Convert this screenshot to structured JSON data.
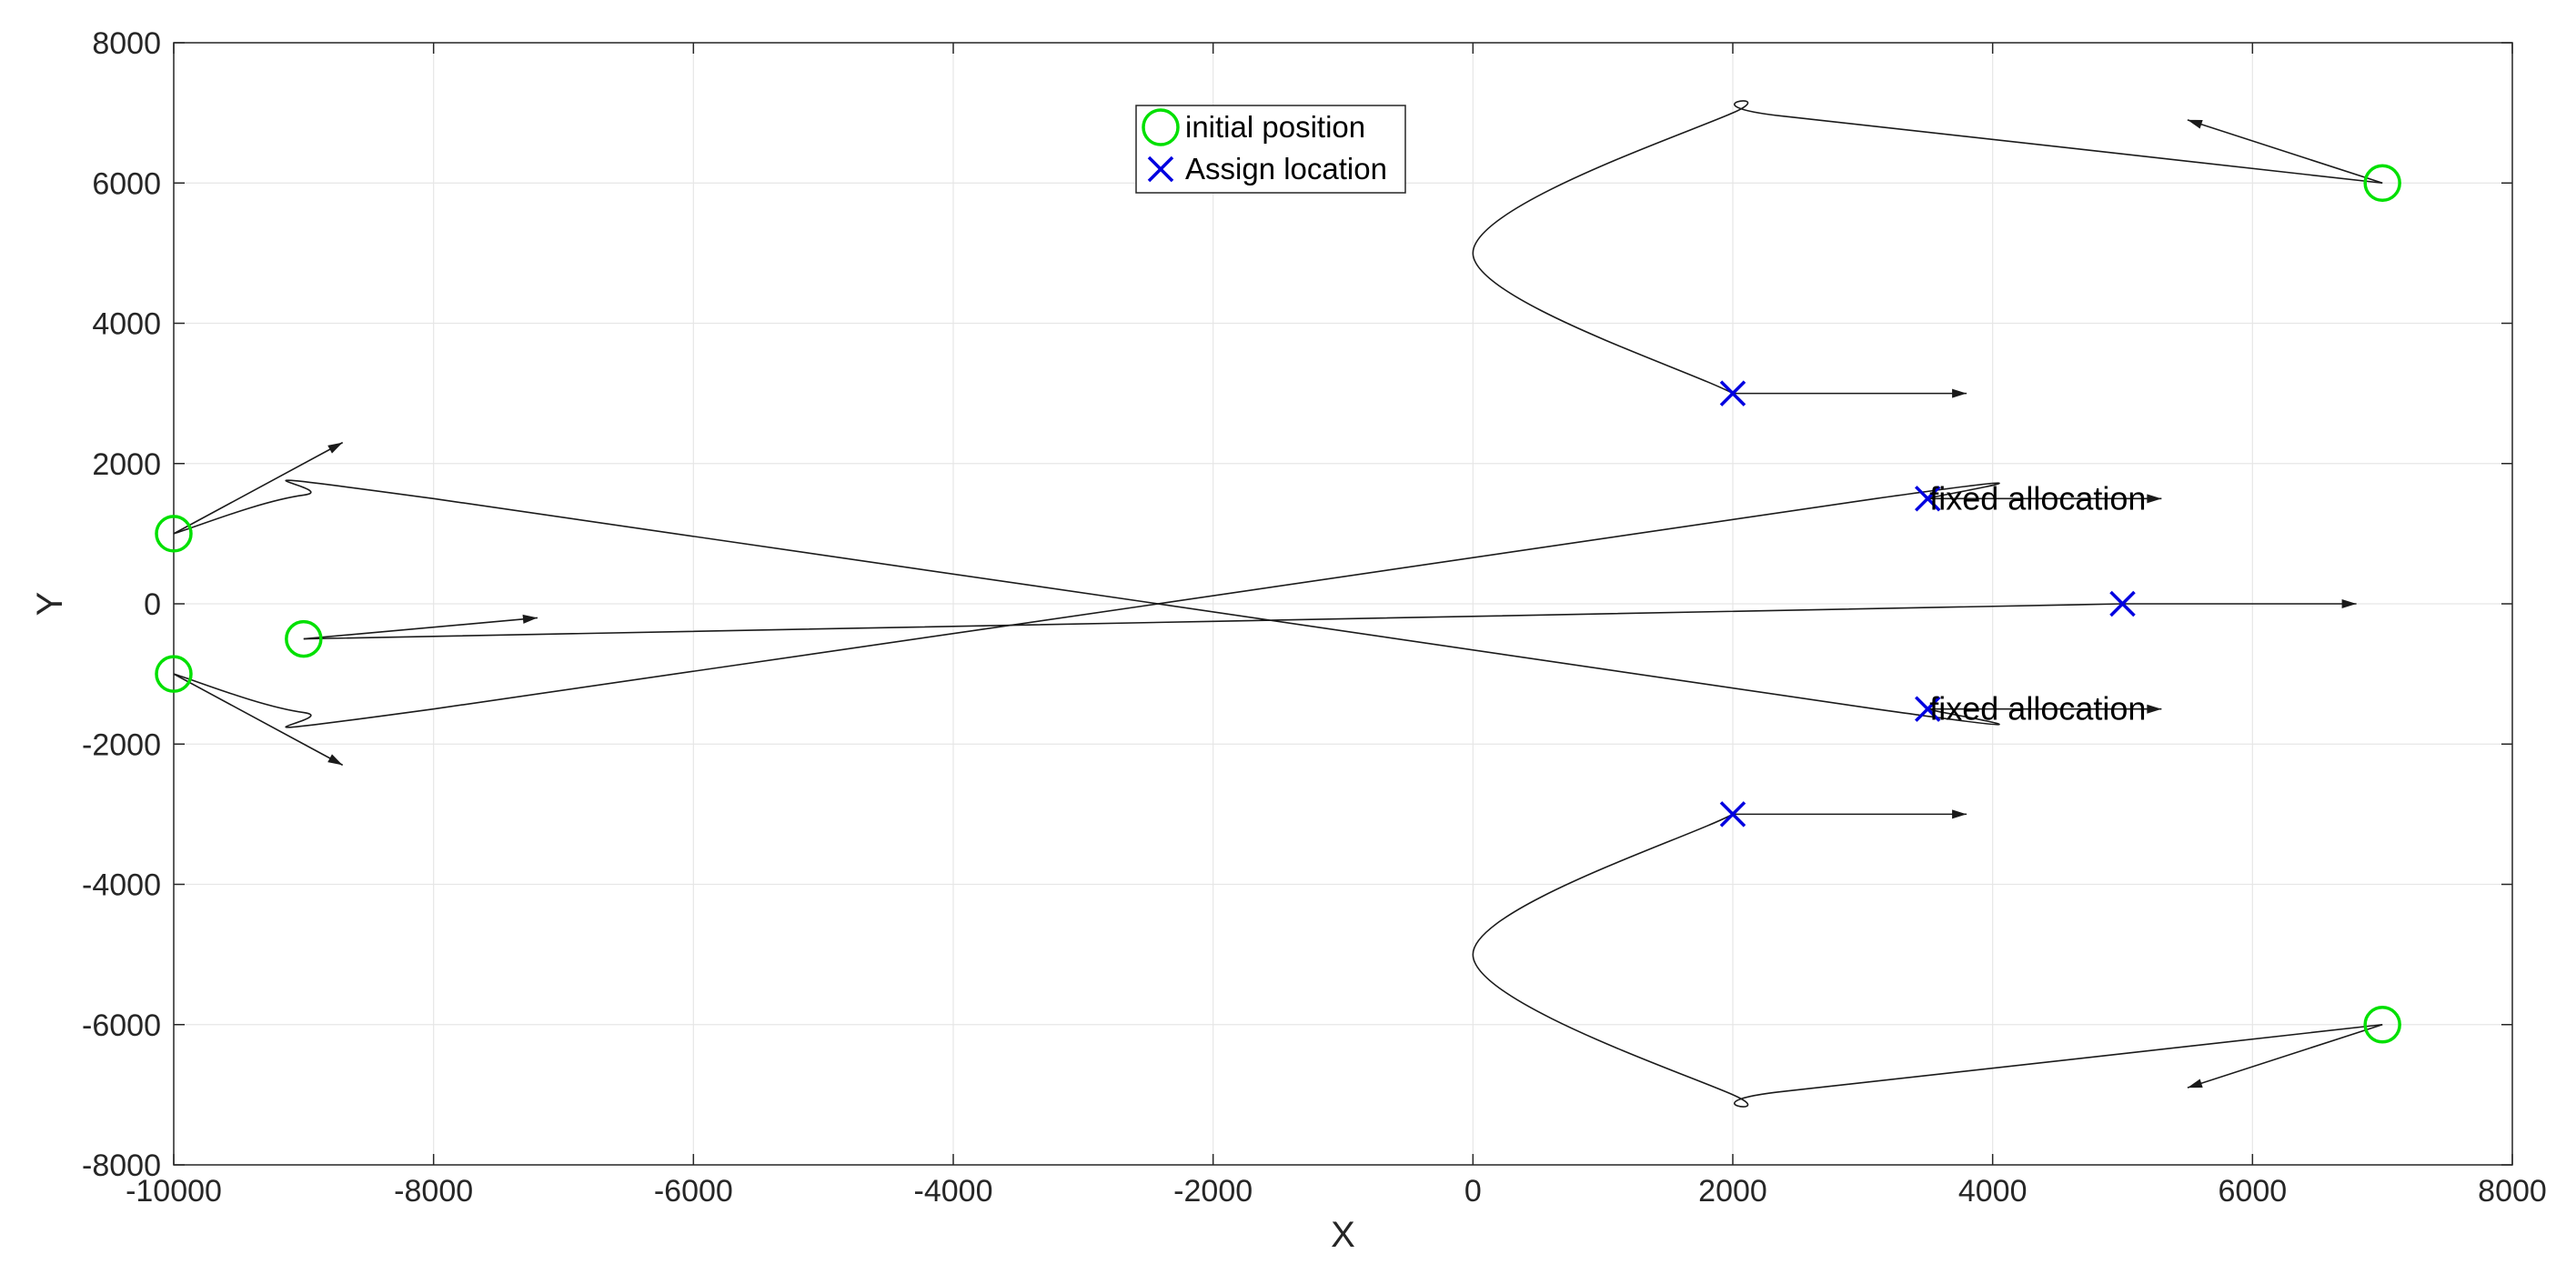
{
  "chart_data": {
    "type": "scatter",
    "title": "",
    "xlabel": "X",
    "ylabel": "Y",
    "xlim": [
      -10000,
      8000
    ],
    "ylim": [
      -8000,
      8000
    ],
    "xticks": [
      -10000,
      -8000,
      -6000,
      -4000,
      -2000,
      0,
      2000,
      4000,
      6000,
      8000
    ],
    "yticks": [
      -8000,
      -6000,
      -4000,
      -2000,
      0,
      2000,
      4000,
      6000,
      8000
    ],
    "xtick_labels": [
      "-10000",
      "-8000",
      "-6000",
      "-4000",
      "-2000",
      "0",
      "2000",
      "4000",
      "6000",
      "8000"
    ],
    "ytick_labels": [
      "-8000",
      "-6000",
      "-4000",
      "-2000",
      "0",
      "2000",
      "4000",
      "6000",
      "8000"
    ],
    "grid": true,
    "legend_position": "top-center",
    "series": [
      {
        "name": "initial position",
        "marker": "circle",
        "color": "#00e000",
        "points": [
          [
            -10000,
            1000
          ],
          [
            -10000,
            -1000
          ],
          [
            -9000,
            -500
          ],
          [
            7000,
            6000
          ],
          [
            7000,
            -6000
          ]
        ]
      },
      {
        "name": "Assign location",
        "marker": "x",
        "color": "#0000e0",
        "points": [
          [
            2000,
            3000
          ],
          [
            3500,
            1500
          ],
          [
            5000,
            0
          ],
          [
            3500,
            -1500
          ],
          [
            2000,
            -3000
          ]
        ]
      }
    ],
    "paths": [
      [
        [
          -10000,
          1000
        ],
        [
          -9000,
          1550
        ],
        [
          -8000,
          1500
        ],
        [
          3100,
          -1500
        ],
        [
          3500,
          -1500
        ]
      ],
      [
        [
          -10000,
          -1000
        ],
        [
          -9000,
          -1550
        ],
        [
          -8000,
          -1500
        ],
        [
          3100,
          1500
        ],
        [
          3500,
          1500
        ]
      ],
      [
        [
          -9000,
          -500
        ],
        [
          5000,
          0
        ]
      ],
      [
        [
          7000,
          6000
        ],
        [
          2400,
          6950
        ],
        [
          2000,
          7000
        ],
        [
          0,
          5000
        ],
        [
          2000,
          3000
        ]
      ],
      [
        [
          7000,
          -6000
        ],
        [
          2400,
          -6950
        ],
        [
          2000,
          -7000
        ],
        [
          0,
          -5000
        ],
        [
          2000,
          -3000
        ]
      ]
    ],
    "arrows": [
      [
        [
          -10000,
          1000
        ],
        [
          -8700,
          2300
        ]
      ],
      [
        [
          -10000,
          -1000
        ],
        [
          -8700,
          -2300
        ]
      ],
      [
        [
          -9000,
          -500
        ],
        [
          -7200,
          -200
        ]
      ],
      [
        [
          7000,
          6000
        ],
        [
          5500,
          6900
        ]
      ],
      [
        [
          7000,
          -6000
        ],
        [
          5500,
          -6900
        ]
      ],
      [
        [
          2000,
          3000
        ],
        [
          3800,
          3000
        ]
      ],
      [
        [
          2000,
          -3000
        ],
        [
          3800,
          -3000
        ]
      ],
      [
        [
          3500,
          1500
        ],
        [
          5300,
          1500
        ]
      ],
      [
        [
          3500,
          -1500
        ],
        [
          5300,
          -1500
        ]
      ],
      [
        [
          5000,
          0
        ],
        [
          6800,
          0
        ]
      ]
    ],
    "annotations": [
      {
        "text": "fixed allocation",
        "x": 3500,
        "y": 1500
      },
      {
        "text": "fixed allocation",
        "x": 3500,
        "y": -1500
      }
    ]
  }
}
